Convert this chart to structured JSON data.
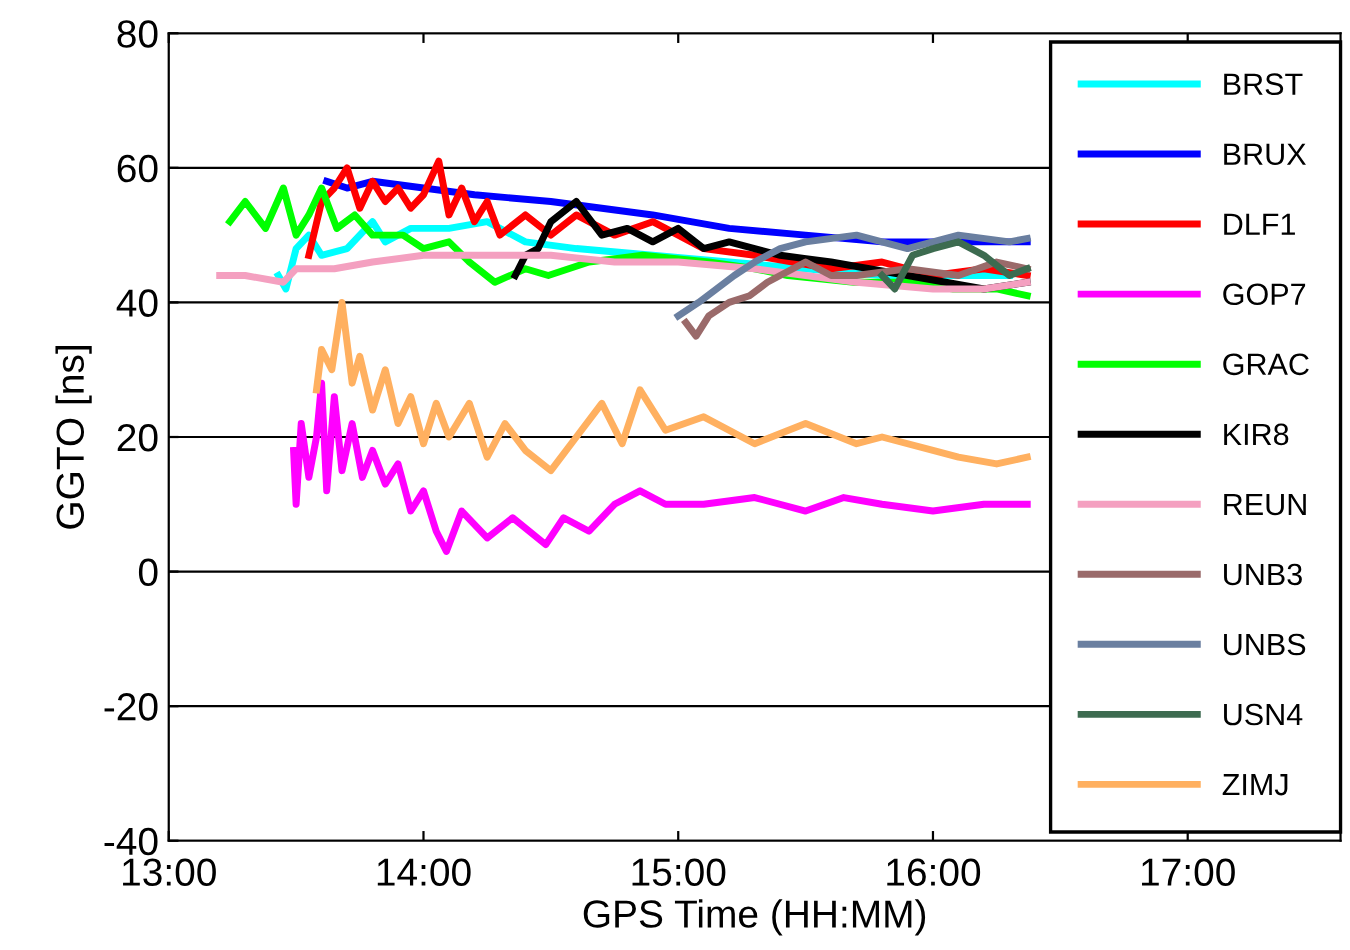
{
  "chart_data": {
    "type": "line",
    "xlabel": "GPS Time (HH:MM)",
    "ylabel": "GGTO [ns]",
    "xlim": [
      13,
      17.6
    ],
    "ylim": [
      -40,
      80
    ],
    "xticks": [
      {
        "value": 13,
        "label": "13:00"
      },
      {
        "value": 14,
        "label": "14:00"
      },
      {
        "value": 15,
        "label": "15:00"
      },
      {
        "value": 16,
        "label": "16:00"
      },
      {
        "value": 17,
        "label": "17:00"
      }
    ],
    "yticks": [
      -40,
      -20,
      0,
      20,
      40,
      60,
      80
    ],
    "grid": "y",
    "legend": "right",
    "line_style": "solid",
    "marker": "none",
    "series": [
      {
        "name": "BRST",
        "color": "#00ffff",
        "x": [
          13.43,
          13.46,
          13.5,
          13.55,
          13.6,
          13.7,
          13.8,
          13.85,
          13.95,
          14.1,
          14.25,
          14.4,
          14.6,
          14.9,
          15.2,
          15.5,
          15.8,
          16.1,
          16.3
        ],
        "values": [
          44,
          42,
          48,
          50,
          47,
          48,
          52,
          49,
          51,
          51,
          52,
          49,
          48,
          47,
          46,
          45,
          44,
          44,
          44
        ]
      },
      {
        "name": "BRUX",
        "color": "#0000ff",
        "x": [
          13.62,
          13.7,
          13.8,
          14.0,
          14.2,
          14.5,
          14.7,
          14.9,
          15.2,
          15.5,
          15.8,
          16.0,
          16.2,
          16.37
        ],
        "values": [
          58,
          57,
          58,
          57,
          56,
          55,
          54,
          53,
          51,
          50,
          49,
          49,
          49,
          49
        ]
      },
      {
        "name": "DLF1",
        "color": "#ff0000",
        "x": [
          13.55,
          13.6,
          13.65,
          13.7,
          13.75,
          13.8,
          13.85,
          13.9,
          13.95,
          14.0,
          14.06,
          14.1,
          14.15,
          14.2,
          14.25,
          14.3,
          14.4,
          14.5,
          14.6,
          14.75,
          14.9,
          15.1,
          15.3,
          15.6,
          15.8,
          16.0,
          16.2,
          16.37
        ],
        "values": [
          47,
          55,
          57,
          60,
          54,
          58,
          55,
          57,
          54,
          56,
          61,
          53,
          57,
          52,
          55,
          50,
          53,
          50,
          53,
          50,
          52,
          48,
          47,
          45,
          46,
          44,
          45,
          44
        ]
      },
      {
        "name": "GOP7",
        "color": "#ff00ff",
        "x": [
          13.49,
          13.5,
          13.52,
          13.55,
          13.58,
          13.6,
          13.62,
          13.65,
          13.68,
          13.72,
          13.76,
          13.8,
          13.85,
          13.9,
          13.95,
          14.0,
          14.05,
          14.09,
          14.15,
          14.25,
          14.35,
          14.48,
          14.55,
          14.65,
          14.75,
          14.85,
          14.95,
          15.1,
          15.3,
          15.5,
          15.65,
          15.8,
          16.0,
          16.2,
          16.37
        ],
        "values": [
          18,
          10,
          22,
          14,
          20,
          28,
          12,
          26,
          15,
          22,
          14,
          18,
          13,
          16,
          9,
          12,
          6,
          3,
          9,
          5,
          8,
          4,
          8,
          6,
          10,
          12,
          10,
          10,
          11,
          9,
          11,
          10,
          9,
          10,
          10
        ]
      },
      {
        "name": "GRAC",
        "color": "#00ff00",
        "x": [
          13.24,
          13.3,
          13.38,
          13.45,
          13.5,
          13.55,
          13.6,
          13.66,
          13.73,
          13.8,
          13.92,
          14.0,
          14.1,
          14.18,
          14.28,
          14.4,
          14.49,
          14.65,
          14.86,
          15.12,
          15.3,
          15.43,
          15.69,
          15.9,
          16.08,
          16.25,
          16.37
        ],
        "values": [
          52,
          55,
          51,
          57,
          50,
          53,
          57,
          51,
          53,
          50,
          50,
          48,
          49,
          46,
          43,
          45,
          44,
          46,
          47,
          46,
          45,
          44,
          43,
          43,
          42,
          42,
          41
        ]
      },
      {
        "name": "KIR8",
        "color": "#000000",
        "x": [
          14.36,
          14.4,
          14.45,
          14.5,
          14.6,
          14.7,
          14.8,
          14.9,
          15.0,
          15.1,
          15.2,
          15.4,
          15.6,
          15.9,
          16.2,
          16.37
        ],
        "values": [
          44,
          47,
          48,
          52,
          55,
          50,
          51,
          49,
          51,
          48,
          49,
          47,
          46,
          44,
          42,
          43
        ]
      },
      {
        "name": "REUN",
        "color": "#f4a0c0",
        "x": [
          13.2,
          13.3,
          13.45,
          13.5,
          13.65,
          13.8,
          14.0,
          14.25,
          14.5,
          14.75,
          15.0,
          15.3,
          15.5,
          15.7,
          16.0,
          16.2,
          16.37
        ],
        "values": [
          44,
          44,
          43,
          45,
          45,
          46,
          47,
          47,
          47,
          46,
          46,
          45,
          44,
          43,
          42,
          42,
          43
        ]
      },
      {
        "name": "UNB3",
        "color": "#9a6a6a",
        "x": [
          15.03,
          15.07,
          15.12,
          15.2,
          15.28,
          15.35,
          15.5,
          15.6,
          15.7,
          15.9,
          16.1,
          16.25,
          16.37
        ],
        "values": [
          37,
          35,
          38,
          40,
          41,
          43,
          46,
          44,
          44,
          45,
          44,
          46,
          45
        ]
      },
      {
        "name": "UNBS",
        "color": "#6a7fa0",
        "x": [
          15.0,
          15.08,
          15.15,
          15.22,
          15.3,
          15.4,
          15.5,
          15.7,
          15.9,
          16.1,
          16.3,
          16.37
        ],
        "values": [
          38,
          40,
          42,
          44,
          46,
          48,
          49,
          50,
          48,
          50,
          49,
          49.5
        ]
      },
      {
        "name": "USN4",
        "color": "#3d6b50",
        "x": [
          15.8,
          15.85,
          15.92,
          16.0,
          16.1,
          16.2,
          16.3,
          16.37
        ],
        "values": [
          44,
          42,
          47,
          48,
          49,
          47,
          44,
          45
        ]
      },
      {
        "name": "ZIMJ",
        "color": "#ffb060",
        "x": [
          13.58,
          13.6,
          13.64,
          13.68,
          13.72,
          13.75,
          13.8,
          13.85,
          13.9,
          13.95,
          14.0,
          14.05,
          14.1,
          14.18,
          14.25,
          14.32,
          14.4,
          14.5,
          14.6,
          14.7,
          14.78,
          14.85,
          14.95,
          15.1,
          15.3,
          15.5,
          15.7,
          15.8,
          16.0,
          16.1,
          16.25,
          16.37
        ],
        "values": [
          27,
          33,
          30,
          40,
          28,
          32,
          24,
          30,
          22,
          26,
          19,
          25,
          20,
          25,
          17,
          22,
          18,
          15,
          20,
          25,
          19,
          27,
          21,
          23,
          19,
          22,
          19,
          20,
          18,
          17,
          16,
          17
        ]
      }
    ]
  }
}
